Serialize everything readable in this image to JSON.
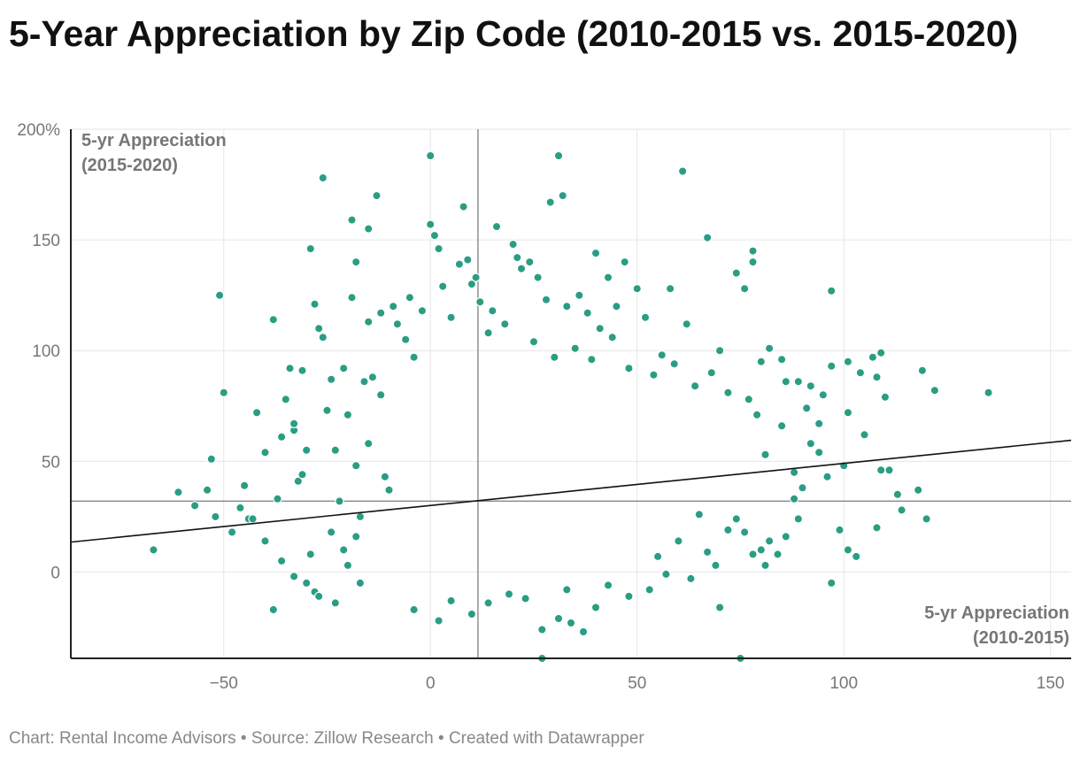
{
  "title": "5-Year Appreciation by Zip Code (2010-2015 vs. 2015-2020)",
  "footer": "Chart: Rental Income Advisors • Source: Zillow Research • Created with Datawrapper",
  "colors": {
    "point": "#2a9d83",
    "trend": "#111111",
    "grid": "#e6e6e6",
    "ref_line": "#888888",
    "axis": "#222222"
  },
  "chart_data": {
    "type": "scatter",
    "title": "5-Year Appreciation by Zip Code (2010-2015 vs. 2015-2020)",
    "xlabel": "5-yr Appreciation (2010-2015)",
    "ylabel": "5-yr Appreciation (2015-2020)",
    "xlabel_lines": [
      "5-yr Appreciation",
      "(2010-2015)"
    ],
    "ylabel_lines": [
      "5-yr Appreciation",
      "(2015-2020)"
    ],
    "xlim": [
      -87,
      155
    ],
    "ylim": [
      -39,
      200
    ],
    "x_ticks": [
      -50,
      0,
      50,
      100,
      150
    ],
    "x_tick_labels": [
      "−50",
      "0",
      "50",
      "100",
      "150"
    ],
    "y_ticks": [
      0,
      50,
      100,
      150,
      200
    ],
    "y_tick_labels": [
      "0",
      "50",
      "100",
      "150",
      "200%"
    ],
    "reference_lines": {
      "x_mean": 11.5,
      "y_mean": 32
    },
    "trendline": {
      "x0": -87,
      "y0": 13.5,
      "x1": 155,
      "y1": 59.5
    },
    "points": [
      [
        -67,
        10
      ],
      [
        -61,
        36
      ],
      [
        -57,
        30
      ],
      [
        -54,
        37
      ],
      [
        -53,
        51
      ],
      [
        -52,
        25
      ],
      [
        -51,
        125
      ],
      [
        -50,
        81
      ],
      [
        -46,
        29
      ],
      [
        -45,
        39
      ],
      [
        -44,
        24
      ],
      [
        -42,
        72
      ],
      [
        -40,
        54
      ],
      [
        -38,
        114
      ],
      [
        -37,
        33
      ],
      [
        -36,
        61
      ],
      [
        -35,
        78
      ],
      [
        -33,
        64
      ],
      [
        -32,
        41
      ],
      [
        -31,
        91
      ],
      [
        -29,
        146
      ],
      [
        -28,
        121
      ],
      [
        -27,
        110
      ],
      [
        -26,
        106
      ],
      [
        -25,
        73
      ],
      [
        -24,
        87
      ],
      [
        -23,
        55
      ],
      [
        -22,
        32
      ],
      [
        -21,
        92
      ],
      [
        -20,
        71
      ],
      [
        -19,
        124
      ],
      [
        -18,
        48
      ],
      [
        -17,
        25
      ],
      [
        -16,
        86
      ],
      [
        -15,
        58
      ],
      [
        -38,
        -17
      ],
      [
        -30,
        -5
      ],
      [
        -28,
        -9
      ],
      [
        -27,
        -11
      ],
      [
        -24,
        18
      ],
      [
        -23,
        -14
      ],
      [
        -21,
        10
      ],
      [
        -20,
        3
      ],
      [
        -18,
        16
      ],
      [
        -17,
        -5
      ],
      [
        -15,
        113
      ],
      [
        -14,
        88
      ],
      [
        -12,
        80
      ],
      [
        -11,
        43
      ],
      [
        -10,
        37
      ],
      [
        -34,
        92
      ],
      [
        -33,
        67
      ],
      [
        -31,
        44
      ],
      [
        -30,
        55
      ],
      [
        -26,
        178
      ],
      [
        -19,
        159
      ],
      [
        -18,
        140
      ],
      [
        -15,
        155
      ],
      [
        -13,
        170
      ],
      [
        -8,
        112
      ],
      [
        -6,
        105
      ],
      [
        -4,
        97
      ],
      [
        -2,
        118
      ],
      [
        0,
        157
      ],
      [
        1,
        152
      ],
      [
        0,
        188
      ],
      [
        2,
        146
      ],
      [
        7,
        139
      ],
      [
        9,
        141
      ],
      [
        8,
        165
      ],
      [
        10,
        130
      ],
      [
        12,
        122
      ],
      [
        14,
        108
      ],
      [
        16,
        156
      ],
      [
        20,
        148
      ],
      [
        21,
        142
      ],
      [
        22,
        137
      ],
      [
        24,
        140
      ],
      [
        26,
        133
      ],
      [
        28,
        123
      ],
      [
        29,
        167
      ],
      [
        31,
        188
      ],
      [
        32,
        170
      ],
      [
        33,
        120
      ],
      [
        36,
        125
      ],
      [
        38,
        117
      ],
      [
        40,
        144
      ],
      [
        41,
        110
      ],
      [
        43,
        133
      ],
      [
        45,
        120
      ],
      [
        47,
        140
      ],
      [
        50,
        128
      ],
      [
        52,
        115
      ],
      [
        56,
        98
      ],
      [
        58,
        128
      ],
      [
        61,
        181
      ],
      [
        62,
        112
      ],
      [
        67,
        151
      ],
      [
        70,
        100
      ],
      [
        74,
        135
      ],
      [
        76,
        128
      ],
      [
        78,
        145
      ],
      [
        78,
        140
      ],
      [
        80,
        95
      ],
      [
        82,
        101
      ],
      [
        85,
        96
      ],
      [
        86,
        86
      ],
      [
        89,
        86
      ],
      [
        92,
        84
      ],
      [
        95,
        80
      ],
      [
        97,
        127
      ],
      [
        97,
        93
      ],
      [
        101,
        95
      ],
      [
        101,
        72
      ],
      [
        104,
        90
      ],
      [
        107,
        97
      ],
      [
        109,
        99
      ],
      [
        110,
        79
      ],
      [
        108,
        88
      ],
      [
        119,
        91
      ],
      [
        122,
        82
      ],
      [
        135,
        81
      ],
      [
        118,
        37
      ],
      [
        114,
        28
      ],
      [
        109,
        46
      ],
      [
        108,
        20
      ],
      [
        111,
        46
      ],
      [
        101,
        10
      ],
      [
        103,
        7
      ],
      [
        99,
        19
      ],
      [
        97,
        -5
      ],
      [
        96,
        43
      ],
      [
        94,
        54
      ],
      [
        92,
        58
      ],
      [
        90,
        38
      ],
      [
        89,
        24
      ],
      [
        88,
        45
      ],
      [
        86,
        16
      ],
      [
        84,
        8
      ],
      [
        82,
        14
      ],
      [
        81,
        3
      ],
      [
        80,
        10
      ],
      [
        78,
        8
      ],
      [
        76,
        18
      ],
      [
        75,
        -39
      ],
      [
        74,
        24
      ],
      [
        72,
        19
      ],
      [
        70,
        -16
      ],
      [
        69,
        3
      ],
      [
        67,
        9
      ],
      [
        65,
        26
      ],
      [
        63,
        -3
      ],
      [
        60,
        14
      ],
      [
        57,
        -1
      ],
      [
        55,
        7
      ],
      [
        53,
        -8
      ],
      [
        120,
        24
      ],
      [
        113,
        35
      ],
      [
        105,
        62
      ],
      [
        100,
        48
      ],
      [
        94,
        67
      ],
      [
        91,
        74
      ],
      [
        88,
        33
      ],
      [
        85,
        66
      ],
      [
        81,
        53
      ],
      [
        79,
        71
      ],
      [
        -12,
        117
      ],
      [
        -9,
        120
      ],
      [
        -5,
        124
      ],
      [
        3,
        129
      ],
      [
        5,
        115
      ],
      [
        11,
        133
      ],
      [
        15,
        118
      ],
      [
        18,
        112
      ],
      [
        25,
        104
      ],
      [
        30,
        97
      ],
      [
        35,
        101
      ],
      [
        39,
        96
      ],
      [
        44,
        106
      ],
      [
        48,
        92
      ],
      [
        54,
        89
      ],
      [
        59,
        94
      ],
      [
        64,
        84
      ],
      [
        68,
        90
      ],
      [
        72,
        81
      ],
      [
        77,
        78
      ],
      [
        27,
        -39
      ],
      [
        27,
        -26
      ],
      [
        31,
        -21
      ],
      [
        34,
        -23
      ],
      [
        37,
        -27
      ],
      [
        40,
        -16
      ],
      [
        2,
        -22
      ],
      [
        -4,
        -17
      ],
      [
        5,
        -13
      ],
      [
        10,
        -19
      ],
      [
        14,
        -14
      ],
      [
        19,
        -10
      ],
      [
        23,
        -12
      ],
      [
        33,
        -8
      ],
      [
        43,
        -6
      ],
      [
        48,
        -11
      ],
      [
        -36,
        5
      ],
      [
        -40,
        14
      ],
      [
        -43,
        24
      ],
      [
        -48,
        18
      ],
      [
        -33,
        -2
      ],
      [
        -29,
        8
      ]
    ]
  }
}
